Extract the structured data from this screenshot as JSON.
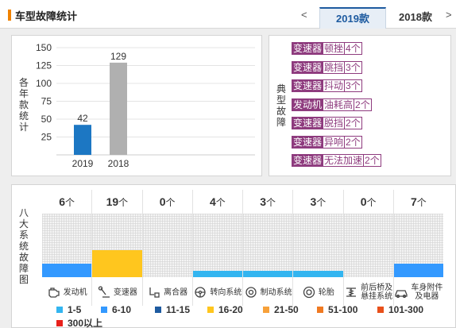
{
  "header": {
    "title": "车型故障统计",
    "prev_arrow": "<",
    "next_arrow": ">",
    "tabs": [
      {
        "label": "2019款",
        "active": true
      },
      {
        "label": "2018款",
        "active": false
      }
    ]
  },
  "yearly_chart": {
    "ylabel": "各年款统计",
    "chart_data": {
      "type": "bar",
      "categories": [
        "2019",
        "2018"
      ],
      "values": [
        42,
        129
      ],
      "colors": [
        "#1c77c3",
        "#b0b0b0"
      ],
      "yticks": [
        25,
        50,
        75,
        100,
        125,
        150
      ],
      "ylim": [
        0,
        150
      ],
      "title": "",
      "xlabel": "",
      "ylabel": "各年款统计"
    }
  },
  "typical_faults": {
    "label": "典型故障",
    "items": [
      {
        "system": "变速器",
        "fault": "顿挫",
        "count": "4个"
      },
      {
        "system": "变速器",
        "fault": "跳挡",
        "count": "3个"
      },
      {
        "system": "变速器",
        "fault": "抖动",
        "count": "3个"
      },
      {
        "system": "发动机",
        "fault": "油耗高",
        "count": "2个"
      },
      {
        "system": "变速器",
        "fault": "脱挡",
        "count": "2个"
      },
      {
        "system": "变速器",
        "fault": "异响",
        "count": "2个"
      },
      {
        "system": "变速器",
        "fault": "无法加速",
        "count": "2个"
      }
    ]
  },
  "eight_systems": {
    "label": "八大系统故障图",
    "unit": "个",
    "systems": [
      {
        "name": "发动机",
        "count": 6,
        "color": "#3399ff",
        "icon": "engine-icon"
      },
      {
        "name": "变速器",
        "count": 19,
        "color": "#ffc61e",
        "icon": "gear-shifter-icon"
      },
      {
        "name": "离合器",
        "count": 0,
        "color": "#3399ff",
        "icon": "clutch-pedal-icon"
      },
      {
        "name": "转向系统",
        "count": 4,
        "color": "#33b5f0",
        "icon": "steering-wheel-icon"
      },
      {
        "name": "制动系统",
        "count": 3,
        "color": "#33b5f0",
        "icon": "brake-disc-icon"
      },
      {
        "name": "轮胎",
        "count": 3,
        "color": "#33b5f0",
        "icon": "tire-icon"
      },
      {
        "name": "前后桥及悬挂系统",
        "count": 0,
        "color": "#3399ff",
        "icon": "suspension-icon"
      },
      {
        "name": "车身附件及电器",
        "count": 7,
        "color": "#3399ff",
        "icon": "car-body-icon"
      }
    ],
    "legend": [
      {
        "label": "1-5",
        "color": "#33b5f0"
      },
      {
        "label": "6-10",
        "color": "#3399ff"
      },
      {
        "label": "11-15",
        "color": "#1e5ba0"
      },
      {
        "label": "16-20",
        "color": "#ffc61e"
      },
      {
        "label": "21-50",
        "color": "#f7a13a"
      },
      {
        "label": "51-100",
        "color": "#f07a22"
      },
      {
        "label": "101-300",
        "color": "#e8501b"
      },
      {
        "label": "300以上",
        "color": "#e8201b"
      }
    ]
  }
}
